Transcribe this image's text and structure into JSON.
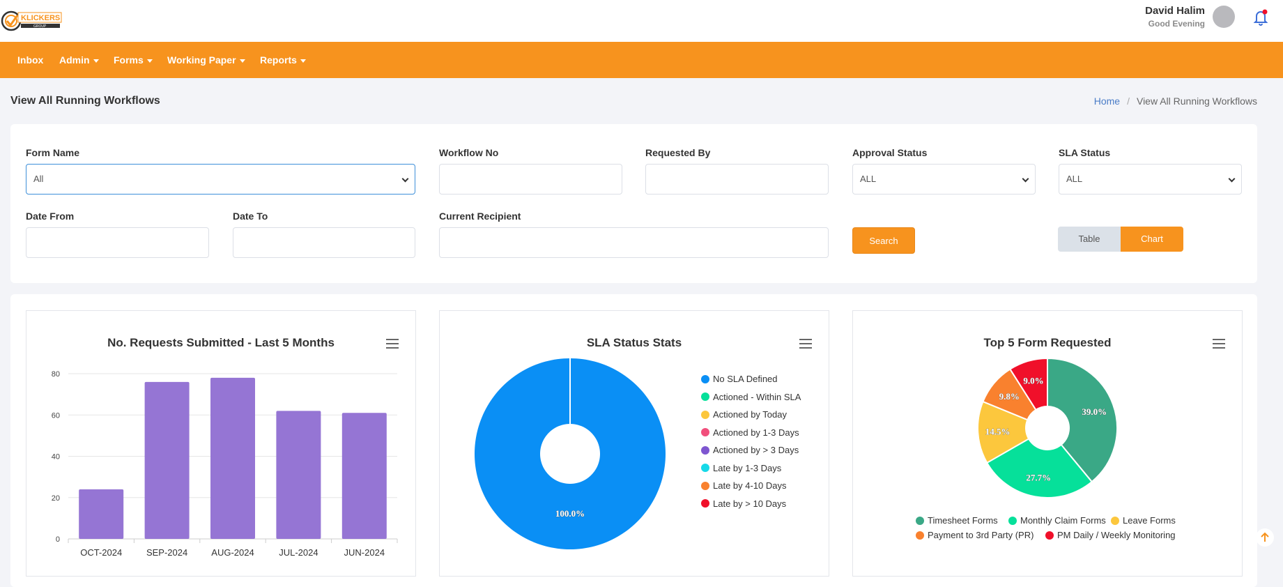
{
  "brand": {
    "logo_text": "KLICKERS",
    "logo_sub": "GROUP"
  },
  "user": {
    "name": "David Halim",
    "greeting": "Good Evening"
  },
  "nav": [
    {
      "label": "Inbox",
      "dropdown": false
    },
    {
      "label": "Admin",
      "dropdown": true
    },
    {
      "label": "Forms",
      "dropdown": true
    },
    {
      "label": "Working Paper",
      "dropdown": true
    },
    {
      "label": "Reports",
      "dropdown": true
    }
  ],
  "page": {
    "title": "View All Running Workflows"
  },
  "breadcrumb": {
    "home": "Home",
    "separator": "/",
    "current": "View All Running Workflows"
  },
  "filters": {
    "form_name": {
      "label": "Form Name",
      "value": "All"
    },
    "workflow_no": {
      "label": "Workflow No",
      "value": ""
    },
    "requested_by": {
      "label": "Requested By",
      "value": ""
    },
    "approval_status": {
      "label": "Approval Status",
      "value": "ALL"
    },
    "sla_status": {
      "label": "SLA Status",
      "value": "ALL"
    },
    "date_from": {
      "label": "Date From",
      "value": ""
    },
    "date_to": {
      "label": "Date To",
      "value": ""
    },
    "current_recipient": {
      "label": "Current Recipient",
      "value": ""
    },
    "search_label": "Search",
    "view_toggle": {
      "table": "Table",
      "chart": "Chart",
      "selected": "Chart"
    }
  },
  "colors": {
    "accent": "#f7931e",
    "bar": "#9575d4",
    "sla_blue": "#0a8ff5"
  },
  "chart_data": [
    {
      "type": "bar",
      "title": "No. Requests Submitted - Last 5 Months",
      "categories": [
        "OCT-2024",
        "SEP-2024",
        "AUG-2024",
        "JUL-2024",
        "JUN-2024"
      ],
      "values": [
        24,
        76,
        78,
        62,
        61
      ],
      "ylim": [
        0,
        80
      ],
      "yticks": [
        "0",
        "20",
        "40",
        "60",
        "80"
      ],
      "grid": true
    },
    {
      "type": "pie",
      "title": "SLA Status Stats",
      "donut": true,
      "labels": [
        "No SLA Defined",
        "Actioned - Within SLA",
        "Actioned by Today",
        "Actioned by 1-3 Days",
        "Actioned by > 3 Days",
        "Late by 1-3 Days",
        "Late by 4-10 Days",
        "Late by > 10 Days"
      ],
      "values": [
        100,
        0,
        0,
        0,
        0,
        0,
        0,
        0
      ],
      "value_labels": [
        "100.0%"
      ],
      "colors": [
        "#0a8ff5",
        "#06e09a",
        "#fcc73d",
        "#f14f7c",
        "#7e56d0",
        "#17d9e8",
        "#f9812e",
        "#f0102a"
      ],
      "legend": "right"
    },
    {
      "type": "pie",
      "title": "Top 5 Form Requested",
      "donut": true,
      "labels": [
        "Timesheet Forms",
        "Monthly Claim Forms",
        "Leave Forms",
        "Payment to 3rd Party (PR)",
        "PM Daily / Weekly Monitoring"
      ],
      "values": [
        39.0,
        27.7,
        14.5,
        9.8,
        9.0
      ],
      "value_labels": [
        "39.0%",
        "27.7%",
        "14.5%",
        "9.8%",
        "9.0%"
      ],
      "colors": [
        "#3aa886",
        "#06e09a",
        "#fcc73d",
        "#f9812e",
        "#f0102a"
      ],
      "legend": "bottom"
    }
  ]
}
